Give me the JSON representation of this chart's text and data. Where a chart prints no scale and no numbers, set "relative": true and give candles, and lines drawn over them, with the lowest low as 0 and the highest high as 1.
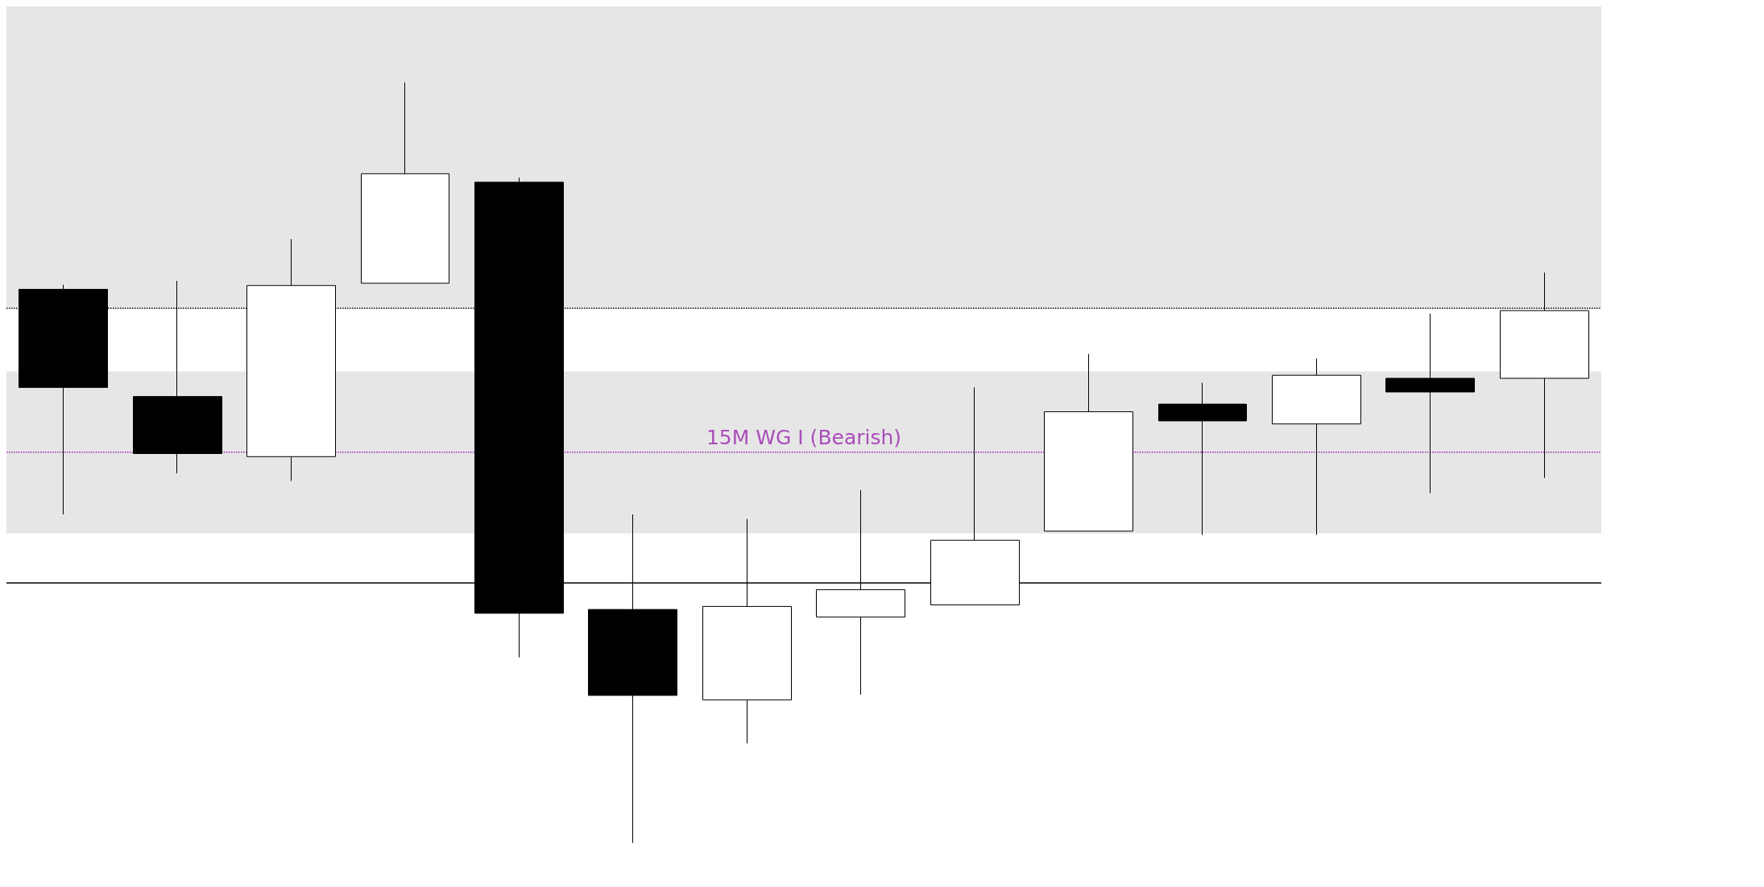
{
  "chart_data": {
    "type": "candlestick",
    "relative": true,
    "categories": [
      null,
      null,
      null,
      null,
      null,
      null,
      null,
      null,
      null,
      null,
      null,
      null,
      null,
      null
    ],
    "ohlc": [
      [
        0.728,
        0.734,
        0.432,
        0.599
      ],
      [
        0.587,
        0.739,
        0.486,
        0.512
      ],
      [
        0.508,
        0.794,
        0.476,
        0.733
      ],
      [
        0.736,
        1.0,
        0.736,
        0.88
      ],
      [
        0.869,
        0.875,
        0.244,
        0.302
      ],
      [
        0.307,
        0.432,
        0.0,
        0.194
      ],
      [
        0.188,
        0.426,
        0.131,
        0.311
      ],
      [
        0.297,
        0.464,
        0.195,
        0.333
      ],
      [
        0.313,
        0.599,
        0.313,
        0.398
      ],
      [
        0.41,
        0.643,
        0.41,
        0.567
      ],
      [
        0.577,
        0.605,
        0.405,
        0.555
      ],
      [
        0.551,
        0.637,
        0.405,
        0.615
      ],
      [
        0.611,
        0.696,
        0.46,
        0.593
      ],
      [
        0.611,
        0.75,
        0.48,
        0.7
      ]
    ],
    "bands": [
      {
        "axis": "y",
        "from": 0.703,
        "to": 1.1,
        "color": "#e6e6e6"
      },
      {
        "axis": "y",
        "from": 0.407,
        "to": 0.62,
        "color": "#e6e6e6"
      }
    ],
    "ref_lines": [
      {
        "axis": "y",
        "value": 0.703,
        "color": "#000000",
        "line_style": "dotted"
      },
      {
        "axis": "y",
        "value": 0.514,
        "label": "15M WG I (Bearish)",
        "color": "#9c27b0",
        "line_style": "dotted"
      },
      {
        "axis": "y",
        "value": 0.342,
        "color": "#000000",
        "line_style": "solid"
      }
    ],
    "grid": false
  }
}
